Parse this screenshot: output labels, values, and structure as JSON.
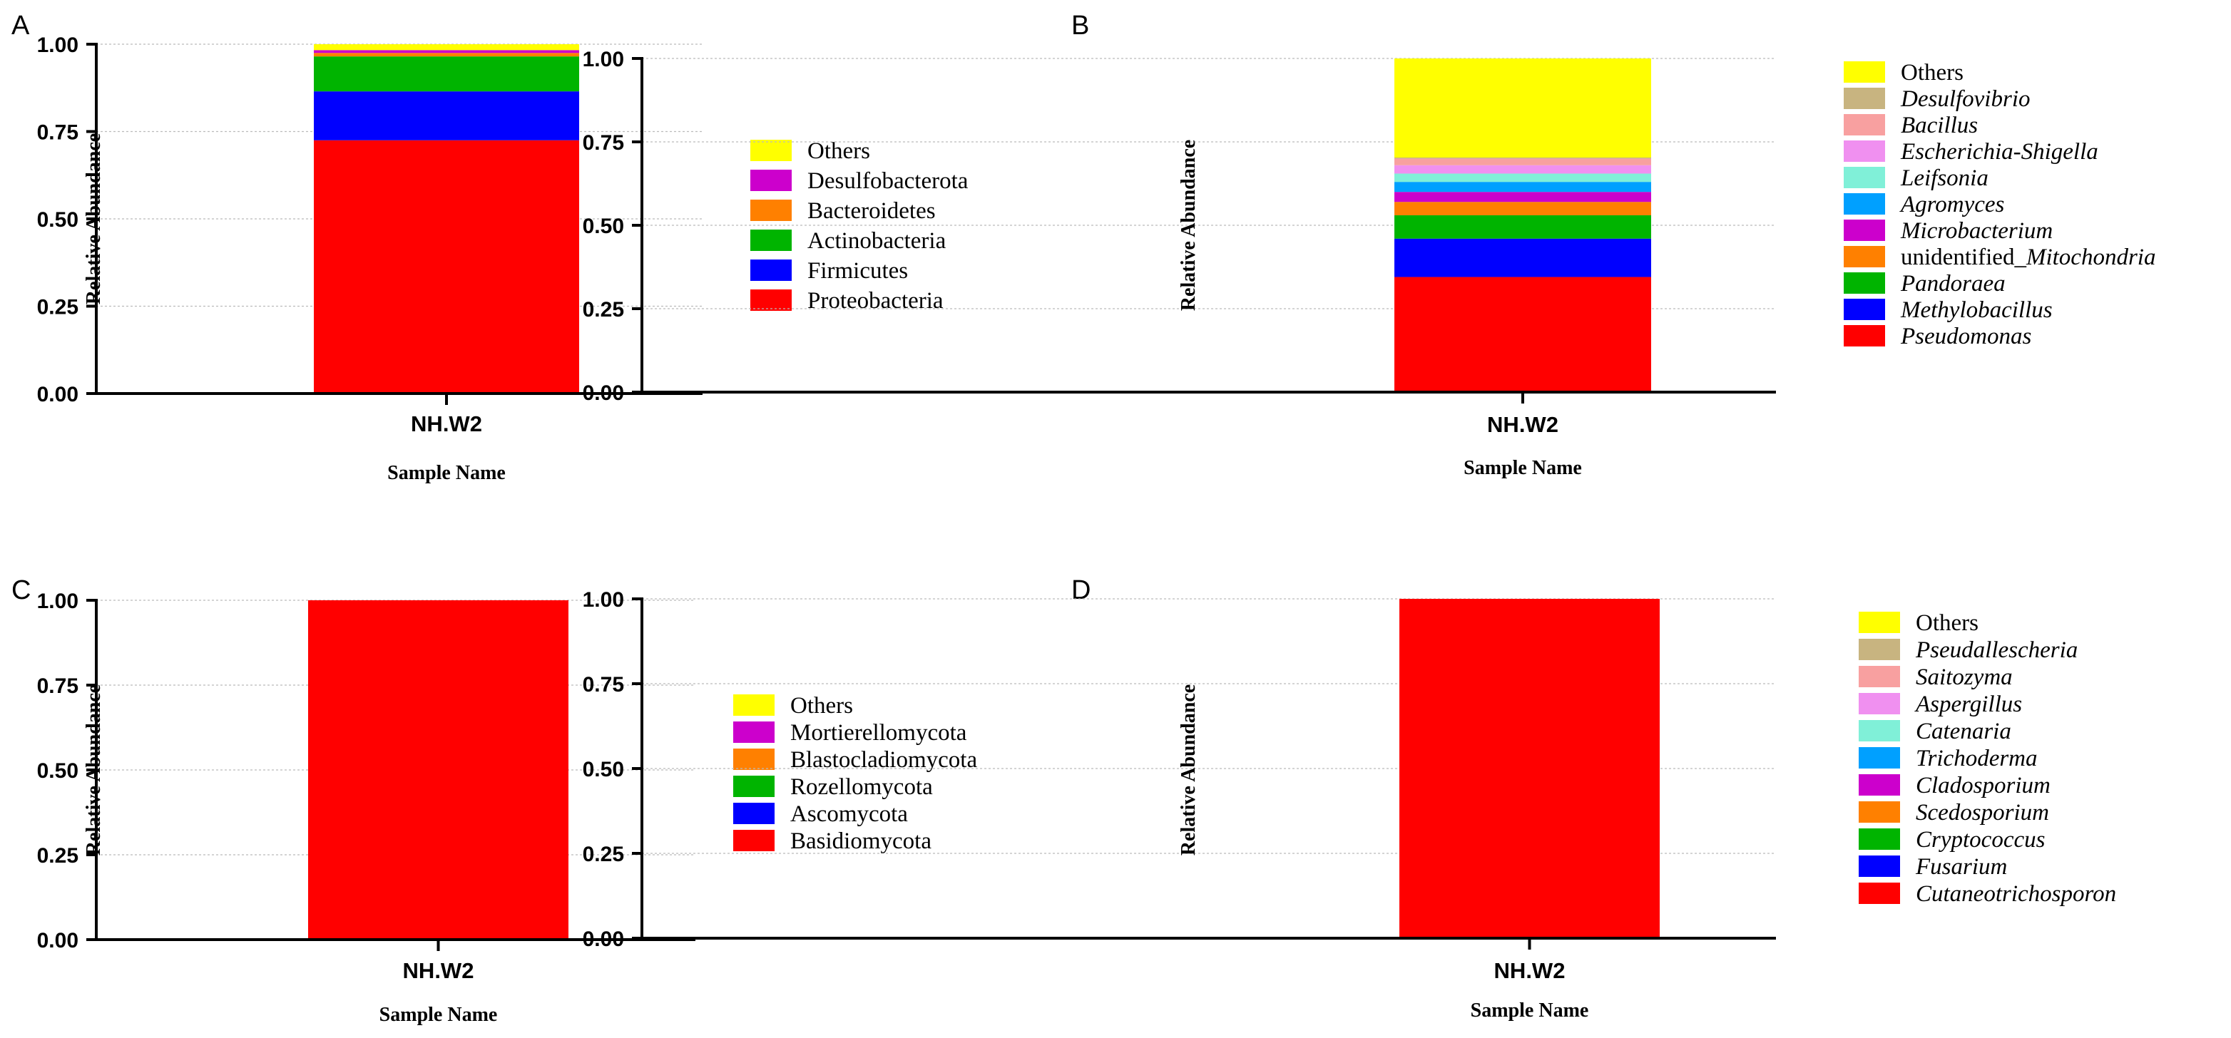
{
  "chart_data": [
    {
      "panel": "A",
      "type": "bar",
      "stacked": true,
      "categories": [
        "NH.W2"
      ],
      "xlabel": "Sample Name",
      "ylabel": "Relative Abundance",
      "ylim": [
        0,
        1
      ],
      "yticks": [
        "0.00",
        "0.25",
        "0.50",
        "0.75",
        "1.00"
      ],
      "grid": true,
      "legend_position": "right",
      "series": [
        {
          "name": "Proteobacteria",
          "values": [
            0.725
          ],
          "color": "#FF0000",
          "italic": false
        },
        {
          "name": "Firmicutes",
          "values": [
            0.14
          ],
          "color": "#0000FF",
          "italic": false
        },
        {
          "name": "Actinobacteria",
          "values": [
            0.1
          ],
          "color": "#00B400",
          "italic": false
        },
        {
          "name": "Bacteroidetes",
          "values": [
            0.01
          ],
          "color": "#FF8000",
          "italic": false
        },
        {
          "name": "Desulfobacterota",
          "values": [
            0.008
          ],
          "color": "#CC00CC",
          "italic": false
        },
        {
          "name": "Others",
          "values": [
            0.017
          ],
          "color": "#FFFF00",
          "italic": false
        }
      ]
    },
    {
      "panel": "B",
      "type": "bar",
      "stacked": true,
      "categories": [
        "NH.W2"
      ],
      "xlabel": "Sample Name",
      "ylabel": "Relative Abundance",
      "ylim": [
        0,
        1
      ],
      "yticks": [
        "0.00",
        "0.25",
        "0.50",
        "0.75",
        "1.00"
      ],
      "grid": true,
      "legend_position": "right",
      "series": [
        {
          "name": "Pseudomonas",
          "values": [
            0.345
          ],
          "color": "#FF0000",
          "italic": true
        },
        {
          "name": "Methylobacillus",
          "values": [
            0.115
          ],
          "color": "#0000FF",
          "italic": true
        },
        {
          "name": "Pandoraea",
          "values": [
            0.07
          ],
          "color": "#00B400",
          "italic": true
        },
        {
          "name": "unidentified_Mitochondria",
          "values": [
            0.04
          ],
          "color": "#FF8000",
          "italic": false,
          "prefix": "unidentified_",
          "suffix": "Mitochondria"
        },
        {
          "name": "Microbacterium",
          "values": [
            0.03
          ],
          "color": "#CC00CC",
          "italic": true
        },
        {
          "name": "Agromyces",
          "values": [
            0.03
          ],
          "color": "#00A0FF",
          "italic": true
        },
        {
          "name": "Leifsonia",
          "values": [
            0.025
          ],
          "color": "#80F0D8",
          "italic": true
        },
        {
          "name": "Escherichia-Shigella",
          "values": [
            0.025
          ],
          "color": "#F090F0",
          "italic": true
        },
        {
          "name": "Bacillus",
          "values": [
            0.02
          ],
          "color": "#F8A0A0",
          "italic": true
        },
        {
          "name": "Desulfovibrio",
          "values": [
            0.003
          ],
          "color": "#C8B480",
          "italic": true
        },
        {
          "name": "Others",
          "values": [
            0.297
          ],
          "color": "#FFFF00",
          "italic": false
        }
      ]
    },
    {
      "panel": "C",
      "type": "bar",
      "stacked": true,
      "categories": [
        "NH.W2"
      ],
      "xlabel": "Sample Name",
      "ylabel": "Relative Abundance",
      "ylim": [
        0,
        1
      ],
      "yticks": [
        "0.00",
        "0.25",
        "0.50",
        "0.75",
        "1.00"
      ],
      "grid": true,
      "legend_position": "right",
      "series": [
        {
          "name": "Basidiomycota",
          "values": [
            1.0
          ],
          "color": "#FF0000",
          "italic": false
        },
        {
          "name": "Ascomycota",
          "values": [
            0
          ],
          "color": "#0000FF",
          "italic": false
        },
        {
          "name": "Rozellomycota",
          "values": [
            0
          ],
          "color": "#00B400",
          "italic": false
        },
        {
          "name": "Blastocladiomycota",
          "values": [
            0
          ],
          "color": "#FF8000",
          "italic": false
        },
        {
          "name": "Mortierellomycota",
          "values": [
            0
          ],
          "color": "#CC00CC",
          "italic": false
        },
        {
          "name": "Others",
          "values": [
            0
          ],
          "color": "#FFFF00",
          "italic": false
        }
      ]
    },
    {
      "panel": "D",
      "type": "bar",
      "stacked": true,
      "categories": [
        "NH.W2"
      ],
      "xlabel": "Sample Name",
      "ylabel": "Relative Abundance",
      "ylim": [
        0,
        1
      ],
      "yticks": [
        "0.00",
        "0.25",
        "0.50",
        "0.75",
        "1.00"
      ],
      "grid": true,
      "legend_position": "right",
      "series": [
        {
          "name": "Cutaneotrichosporon",
          "values": [
            1.0
          ],
          "color": "#FF0000",
          "italic": true
        },
        {
          "name": "Fusarium",
          "values": [
            0
          ],
          "color": "#0000FF",
          "italic": true
        },
        {
          "name": "Cryptococcus",
          "values": [
            0
          ],
          "color": "#00B400",
          "italic": true
        },
        {
          "name": "Scedosporium",
          "values": [
            0
          ],
          "color": "#FF8000",
          "italic": true
        },
        {
          "name": "Cladosporium",
          "values": [
            0
          ],
          "color": "#CC00CC",
          "italic": true
        },
        {
          "name": "Trichoderma",
          "values": [
            0
          ],
          "color": "#00A0FF",
          "italic": true
        },
        {
          "name": "Catenaria",
          "values": [
            0
          ],
          "color": "#80F0D8",
          "italic": true
        },
        {
          "name": "Aspergillus",
          "values": [
            0
          ],
          "color": "#F090F0",
          "italic": true
        },
        {
          "name": "Saitozyma",
          "values": [
            0
          ],
          "color": "#F8A0A0",
          "italic": true
        },
        {
          "name": "Pseudallescheria",
          "values": [
            0
          ],
          "color": "#C8B480",
          "italic": true
        },
        {
          "name": "Others",
          "values": [
            0
          ],
          "color": "#FFFF00",
          "italic": false
        }
      ]
    }
  ]
}
